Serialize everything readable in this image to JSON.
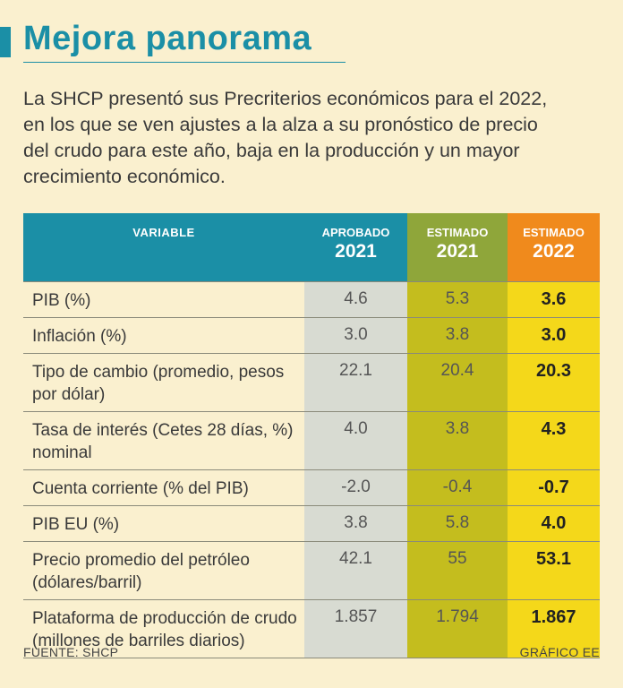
{
  "title": "Mejora panorama",
  "intro": "La SHCP presentó sus Precriterios económicos para el 2022, en los que se ven ajustes a la alza a su pronóstico de precio del crudo para este año, baja en la producción y un mayor crecimiento económico.",
  "table": {
    "headers": {
      "variable": "VARIABLE",
      "col_a": {
        "label": "APROBADO",
        "year": "2021"
      },
      "col_b": {
        "label": "ESTIMADO",
        "year": "2021"
      },
      "col_c": {
        "label": "ESTIMADO",
        "year": "2022"
      }
    },
    "colors": {
      "teal": "#1b8fa6",
      "green": "#8fa63a",
      "orange": "#f08a1c",
      "yellow": "#f4d81a"
    },
    "rows": [
      {
        "variable": "PIB (%)",
        "a": "4.6",
        "b": "5.3",
        "c": "3.6"
      },
      {
        "variable": "Inflación (%)",
        "a": "3.0",
        "b": "3.8",
        "c": "3.0"
      },
      {
        "variable": "Tipo de cambio (promedio, pesos por dólar)",
        "a": "22.1",
        "b": "20.4",
        "c": "20.3"
      },
      {
        "variable": "Tasa de interés (Cetes 28 días, %) nominal",
        "a": "4.0",
        "b": "3.8",
        "c": "4.3"
      },
      {
        "variable": "Cuenta corriente (% del PIB)",
        "a": "-2.0",
        "b": "-0.4",
        "c": "-0.7"
      },
      {
        "variable": "PIB EU (%)",
        "a": "3.8",
        "b": "5.8",
        "c": "4.0"
      },
      {
        "variable": "Precio promedio del petróleo (dólares/barril)",
        "a": "42.1",
        "b": "55",
        "c": "53.1"
      },
      {
        "variable": "Plataforma de producción de crudo (millones de barriles diarios)",
        "a": "1.857",
        "b": "1.794",
        "c": "1.867"
      }
    ]
  },
  "footer": {
    "source": "FUENTE:  SHCP",
    "credit": "GRÁFICO EE"
  }
}
